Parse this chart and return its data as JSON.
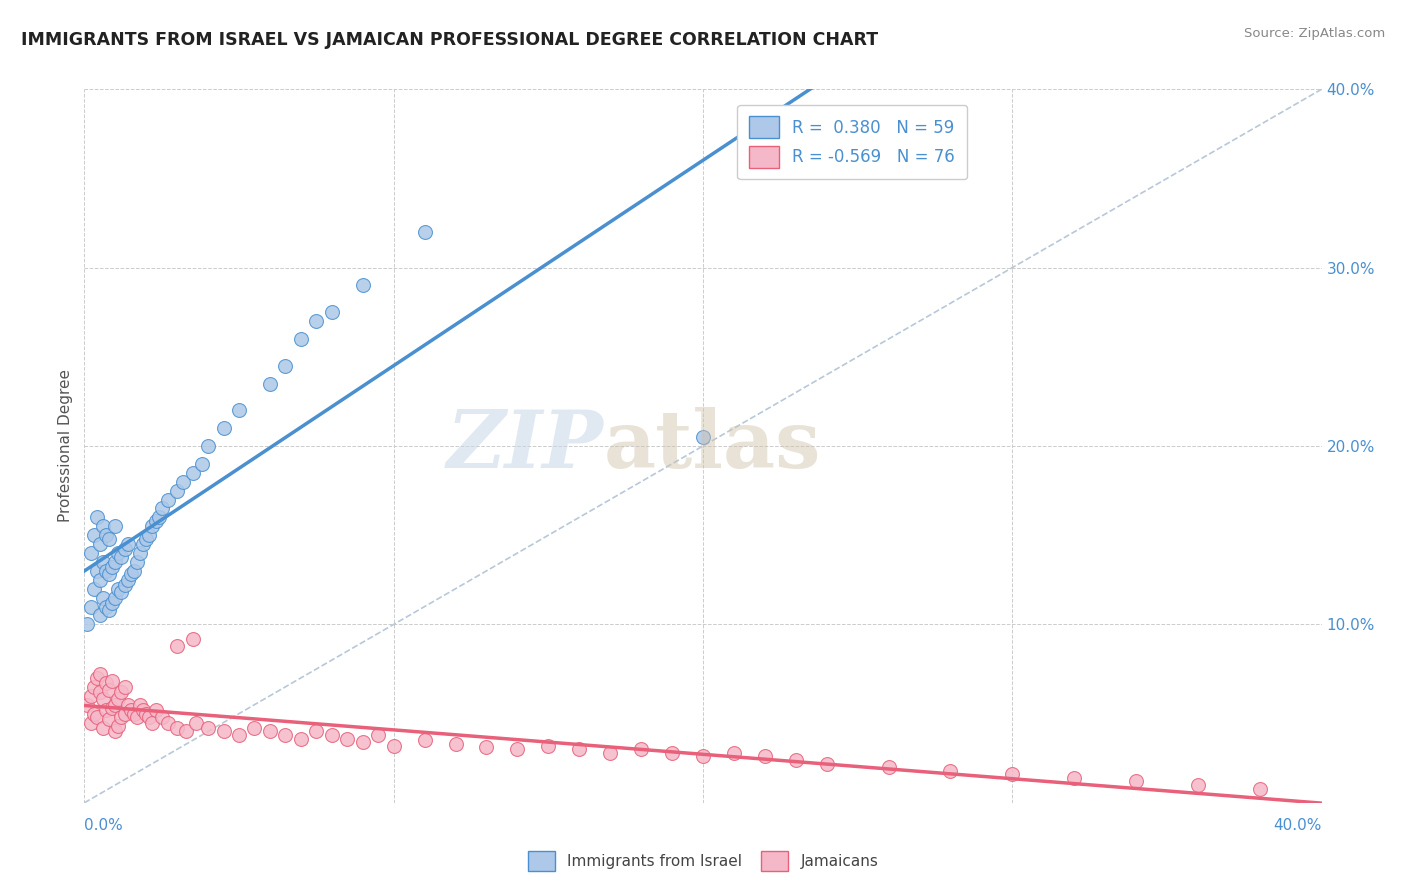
{
  "title": "IMMIGRANTS FROM ISRAEL VS JAMAICAN PROFESSIONAL DEGREE CORRELATION CHART",
  "source": "Source: ZipAtlas.com",
  "ylabel": "Professional Degree",
  "legend_bottom": [
    "Immigrants from Israel",
    "Jamaicans"
  ],
  "israel_R": 0.38,
  "israel_N": 59,
  "jamaican_R": -0.569,
  "jamaican_N": 76,
  "israel_color": "#adc8e8",
  "jamaican_color": "#f5b8c8",
  "israel_line_color": "#4a90d0",
  "jamaican_line_color": "#e8607a",
  "trend_line_dashed_color": "#b8c8d8",
  "watermark_zip": "ZIP",
  "watermark_atlas": "atlas",
  "xlim": [
    0.0,
    0.4
  ],
  "ylim": [
    0.0,
    0.4
  ],
  "israel_scatter_x": [
    0.001,
    0.002,
    0.002,
    0.003,
    0.003,
    0.004,
    0.004,
    0.005,
    0.005,
    0.005,
    0.006,
    0.006,
    0.006,
    0.007,
    0.007,
    0.007,
    0.008,
    0.008,
    0.008,
    0.009,
    0.009,
    0.01,
    0.01,
    0.01,
    0.011,
    0.011,
    0.012,
    0.012,
    0.013,
    0.013,
    0.014,
    0.014,
    0.015,
    0.016,
    0.017,
    0.018,
    0.019,
    0.02,
    0.021,
    0.022,
    0.023,
    0.024,
    0.025,
    0.027,
    0.03,
    0.032,
    0.035,
    0.038,
    0.04,
    0.045,
    0.05,
    0.06,
    0.065,
    0.07,
    0.075,
    0.08,
    0.09,
    0.11,
    0.2
  ],
  "israel_scatter_y": [
    0.1,
    0.11,
    0.14,
    0.12,
    0.15,
    0.13,
    0.16,
    0.105,
    0.125,
    0.145,
    0.115,
    0.135,
    0.155,
    0.11,
    0.13,
    0.15,
    0.108,
    0.128,
    0.148,
    0.112,
    0.132,
    0.115,
    0.135,
    0.155,
    0.12,
    0.14,
    0.118,
    0.138,
    0.122,
    0.142,
    0.125,
    0.145,
    0.128,
    0.13,
    0.135,
    0.14,
    0.145,
    0.148,
    0.15,
    0.155,
    0.158,
    0.16,
    0.165,
    0.17,
    0.175,
    0.18,
    0.185,
    0.19,
    0.2,
    0.21,
    0.22,
    0.235,
    0.245,
    0.26,
    0.27,
    0.275,
    0.29,
    0.32,
    0.205
  ],
  "jamaican_scatter_x": [
    0.001,
    0.002,
    0.002,
    0.003,
    0.003,
    0.004,
    0.004,
    0.005,
    0.005,
    0.006,
    0.006,
    0.007,
    0.007,
    0.008,
    0.008,
    0.009,
    0.009,
    0.01,
    0.01,
    0.011,
    0.011,
    0.012,
    0.012,
    0.013,
    0.013,
    0.014,
    0.015,
    0.016,
    0.017,
    0.018,
    0.019,
    0.02,
    0.021,
    0.022,
    0.023,
    0.025,
    0.027,
    0.03,
    0.033,
    0.036,
    0.04,
    0.045,
    0.05,
    0.055,
    0.06,
    0.065,
    0.07,
    0.075,
    0.08,
    0.085,
    0.09,
    0.1,
    0.11,
    0.12,
    0.13,
    0.14,
    0.15,
    0.16,
    0.17,
    0.18,
    0.19,
    0.2,
    0.21,
    0.22,
    0.23,
    0.24,
    0.26,
    0.28,
    0.3,
    0.32,
    0.34,
    0.36,
    0.38,
    0.03,
    0.035,
    0.095
  ],
  "jamaican_scatter_y": [
    0.055,
    0.06,
    0.045,
    0.065,
    0.05,
    0.07,
    0.048,
    0.062,
    0.072,
    0.058,
    0.042,
    0.067,
    0.052,
    0.063,
    0.047,
    0.068,
    0.053,
    0.055,
    0.04,
    0.058,
    0.043,
    0.062,
    0.048,
    0.065,
    0.05,
    0.055,
    0.052,
    0.05,
    0.048,
    0.055,
    0.052,
    0.05,
    0.048,
    0.045,
    0.052,
    0.048,
    0.045,
    0.042,
    0.04,
    0.045,
    0.042,
    0.04,
    0.038,
    0.042,
    0.04,
    0.038,
    0.036,
    0.04,
    0.038,
    0.036,
    0.034,
    0.032,
    0.035,
    0.033,
    0.031,
    0.03,
    0.032,
    0.03,
    0.028,
    0.03,
    0.028,
    0.026,
    0.028,
    0.026,
    0.024,
    0.022,
    0.02,
    0.018,
    0.016,
    0.014,
    0.012,
    0.01,
    0.008,
    0.088,
    0.092,
    0.038
  ]
}
